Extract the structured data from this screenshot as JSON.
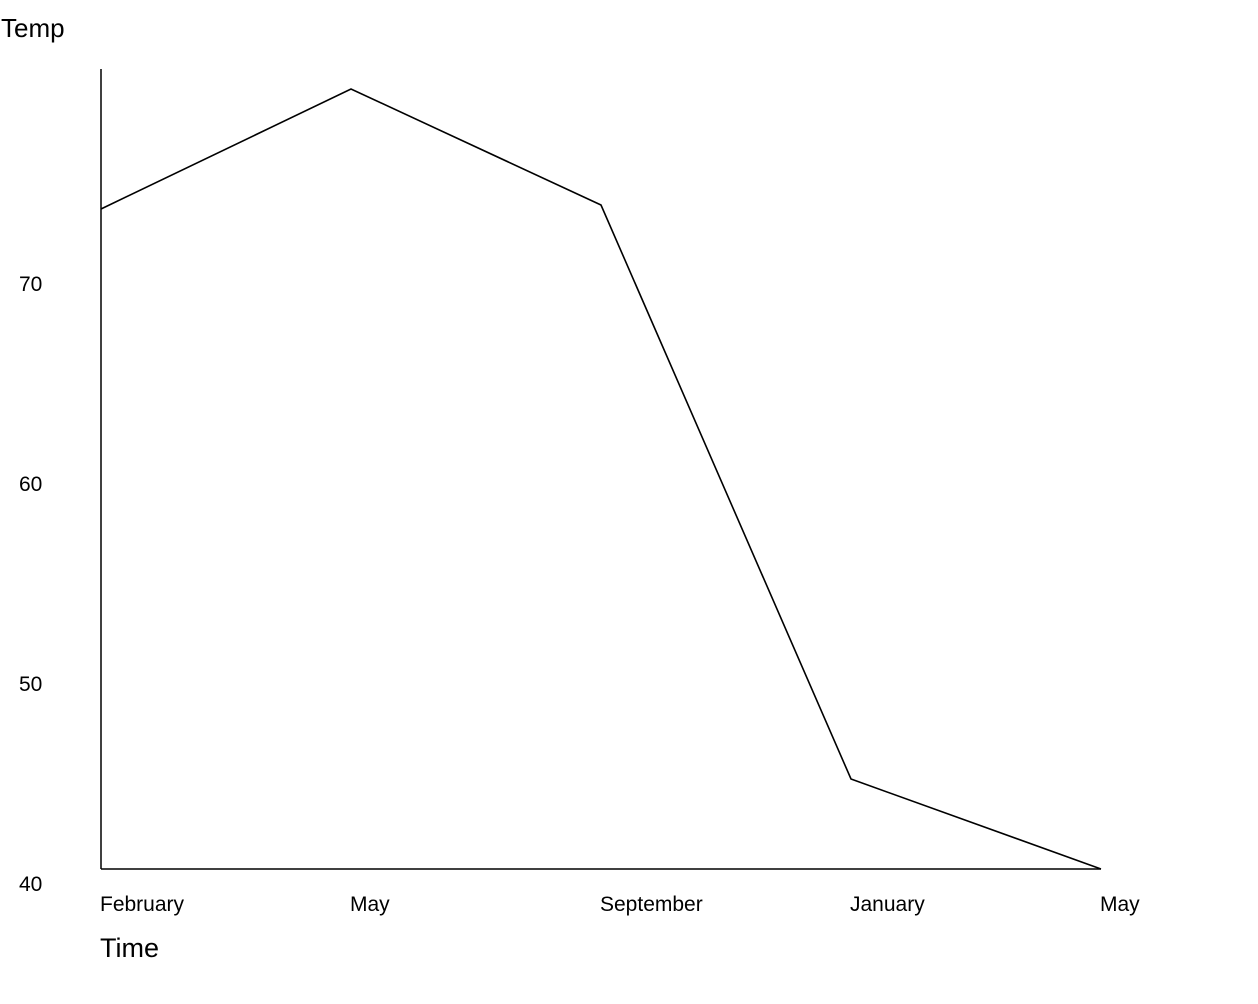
{
  "chart_data": {
    "type": "line",
    "title": "",
    "xlabel": "Time",
    "ylabel": "Temp",
    "x": [
      "February",
      "May",
      "September",
      "January",
      "May"
    ],
    "series": [
      {
        "values": [
          73.0,
          79.0,
          73.2,
          44.5,
          40.0
        ]
      }
    ],
    "ylim": [
      40,
      80
    ],
    "yticks": [
      40,
      50,
      60,
      70
    ],
    "grid": false,
    "legend": "none",
    "line_color": "#000000",
    "background_color": "#ffffff"
  }
}
